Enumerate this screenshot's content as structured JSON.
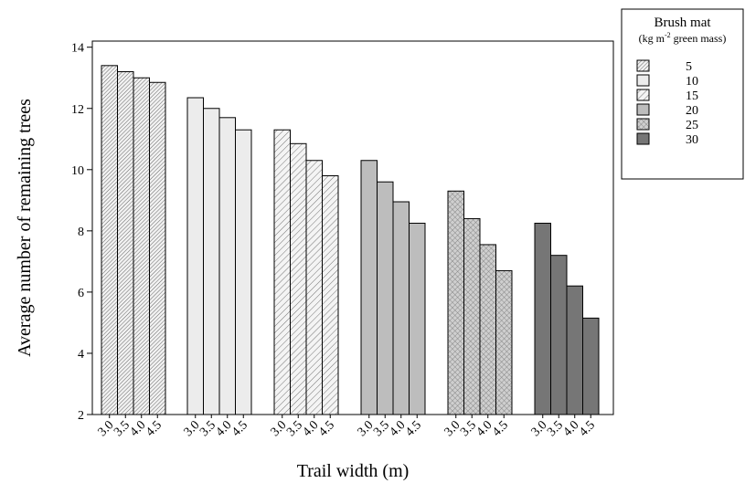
{
  "chart_data": {
    "type": "bar",
    "xlabel": "Trail width (m)",
    "ylabel": "Average number of remaining trees",
    "ylim": [
      2,
      14.2
    ],
    "yticks": [
      2,
      4,
      6,
      8,
      10,
      12,
      14
    ],
    "categories": [
      "3.0",
      "3.5",
      "4.0",
      "4.5"
    ],
    "legend": {
      "title": "Brush mat",
      "subtitle_pre": "(kg m",
      "subtitle_sup": "-2",
      "subtitle_post": " green mass)",
      "placement": "top-right, outside plot"
    },
    "series": [
      {
        "name": "5",
        "values": [
          13.4,
          13.2,
          13.0,
          12.85
        ],
        "pattern": "hatch-dense",
        "color": "#f2f2f2"
      },
      {
        "name": "10",
        "values": [
          12.35,
          12.0,
          11.7,
          11.3
        ],
        "pattern": "solid",
        "color": "#ececec"
      },
      {
        "name": "15",
        "values": [
          11.3,
          10.85,
          10.3,
          9.8
        ],
        "pattern": "hatch-sparse",
        "color": "#f4f4f4"
      },
      {
        "name": "20",
        "values": [
          10.3,
          9.6,
          8.95,
          8.25
        ],
        "pattern": "solid",
        "color": "#bdbdbd"
      },
      {
        "name": "25",
        "values": [
          9.3,
          8.4,
          7.55,
          6.7
        ],
        "pattern": "crosshatch",
        "color": "#cfcfcf"
      },
      {
        "name": "30",
        "values": [
          8.25,
          7.2,
          6.2,
          5.15
        ],
        "pattern": "solid",
        "color": "#767676"
      }
    ]
  }
}
